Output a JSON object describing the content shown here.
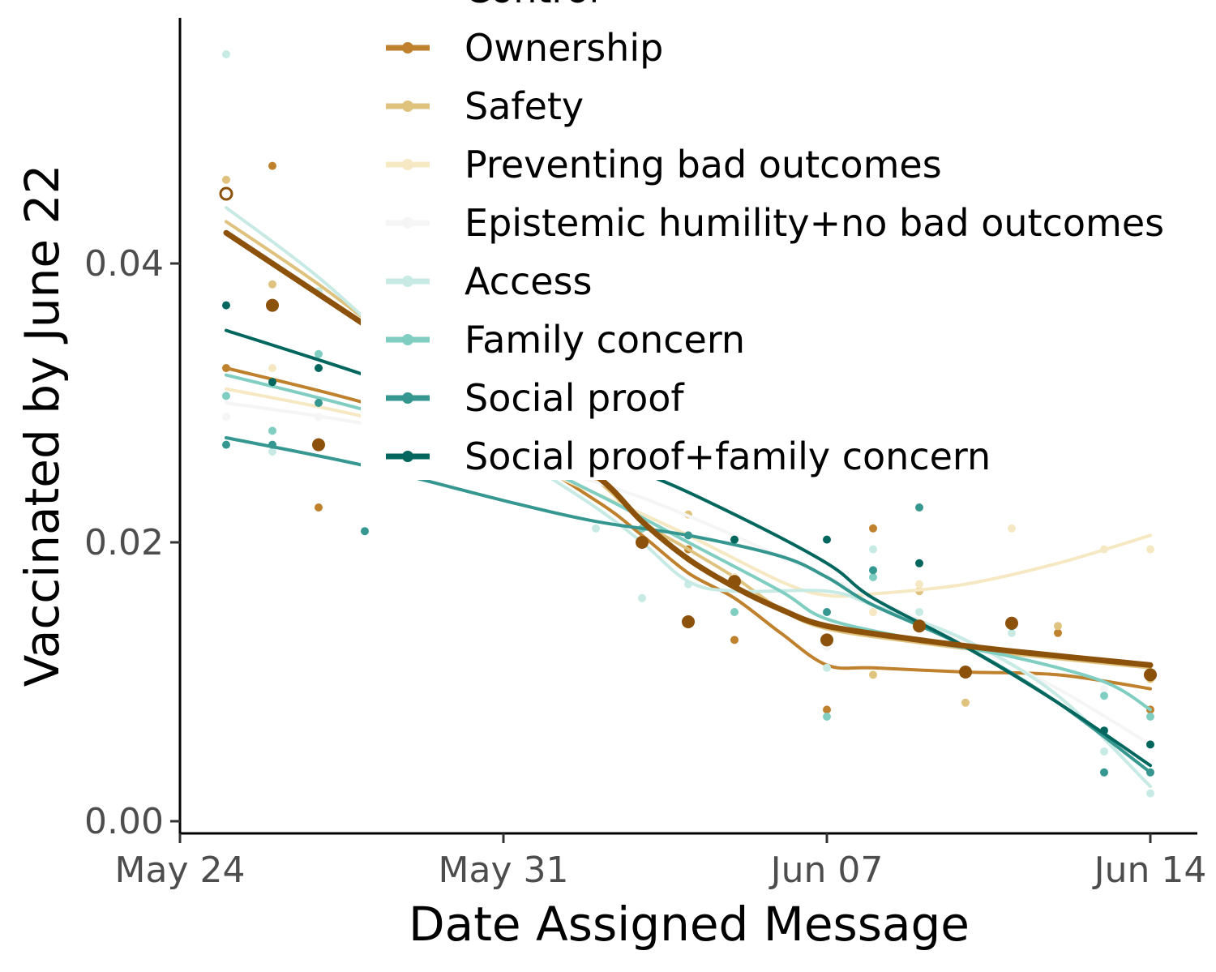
{
  "chart_data": {
    "type": "scatter",
    "title": "",
    "xlabel": "Date Assigned Message",
    "ylabel": "Vaccinated by June 22",
    "x_ticks": [
      {
        "day": 0,
        "label": "May 24"
      },
      {
        "day": 7,
        "label": "May 31"
      },
      {
        "day": 14,
        "label": "Jun 07"
      },
      {
        "day": 21,
        "label": "Jun 14"
      }
    ],
    "xlim": [
      "2021-05-24",
      "2021-06-15"
    ],
    "xlim_days": [
      0,
      22.0
    ],
    "ylim": [
      -0.001,
      0.056
    ],
    "y_ticks": [
      {
        "value": 0.0,
        "label": "0.00"
      },
      {
        "value": 0.02,
        "label": "0.02"
      },
      {
        "value": 0.04,
        "label": "0.04"
      }
    ],
    "grid": false,
    "legend_position": "top-center",
    "series": [
      {
        "name": "Control",
        "color": "#8c510a",
        "line_width": 7,
        "point_r": 8,
        "smooth": [
          [
            1,
            0.0422
          ],
          [
            3,
            0.0378
          ],
          [
            5,
            0.0334
          ],
          [
            7,
            0.029
          ],
          [
            9,
            0.0248
          ],
          [
            10,
            0.0215
          ],
          [
            11,
            0.0188
          ],
          [
            12,
            0.0168
          ],
          [
            13,
            0.0152
          ],
          [
            14,
            0.014
          ],
          [
            16,
            0.013
          ],
          [
            18,
            0.0122
          ],
          [
            21,
            0.0112
          ]
        ],
        "points": [
          [
            2,
            0.037
          ],
          [
            3,
            0.027
          ],
          [
            10,
            0.02
          ],
          [
            11,
            0.0143
          ],
          [
            12,
            0.0172
          ],
          [
            14,
            0.013
          ],
          [
            16,
            0.014
          ],
          [
            17,
            0.0107
          ],
          [
            18,
            0.0142
          ],
          [
            21,
            0.0105
          ]
        ]
      },
      {
        "name": "Ownership",
        "color": "#bf812d",
        "line_width": 4,
        "point_r": 5,
        "smooth": [
          [
            1,
            0.0325
          ],
          [
            4,
            0.03
          ],
          [
            7,
            0.0268
          ],
          [
            9,
            0.023
          ],
          [
            10,
            0.0205
          ],
          [
            11,
            0.0178
          ],
          [
            12,
            0.016
          ],
          [
            13,
            0.0135
          ],
          [
            14,
            0.0112
          ],
          [
            15,
            0.011
          ],
          [
            17,
            0.0107
          ],
          [
            19,
            0.0105
          ],
          [
            21,
            0.0095
          ]
        ],
        "points": [
          [
            1,
            0.0325
          ],
          [
            2,
            0.047
          ],
          [
            3,
            0.0225
          ],
          [
            10,
            0.021
          ],
          [
            11,
            0.0195
          ],
          [
            12,
            0.013
          ],
          [
            14,
            0.008
          ],
          [
            15,
            0.021
          ],
          [
            17,
            0.0108
          ],
          [
            19,
            0.0135
          ],
          [
            21,
            0.008
          ]
        ]
      },
      {
        "name": "Safety",
        "color": "#dfc27d",
        "line_width": 4,
        "point_r": 5,
        "smooth": [
          [
            1,
            0.043
          ],
          [
            3,
            0.0385
          ],
          [
            5,
            0.0335
          ],
          [
            7,
            0.029
          ],
          [
            9,
            0.0245
          ],
          [
            10,
            0.0215
          ],
          [
            11,
            0.0195
          ],
          [
            12,
            0.0175
          ],
          [
            13,
            0.0152
          ],
          [
            14,
            0.0138
          ],
          [
            16,
            0.0128
          ],
          [
            18,
            0.012
          ],
          [
            21,
            0.011
          ]
        ],
        "points": [
          [
            1,
            0.046
          ],
          [
            2,
            0.0385
          ],
          [
            10,
            0.021
          ],
          [
            11,
            0.022
          ],
          [
            12,
            0.017
          ],
          [
            15,
            0.0105
          ],
          [
            16,
            0.0165
          ],
          [
            17,
            0.0085
          ],
          [
            19,
            0.014
          ],
          [
            21,
            0.0102
          ]
        ]
      },
      {
        "name": "Preventing bad outcomes",
        "color": "#f6e8c3",
        "line_width": 4,
        "point_r": 5,
        "smooth": [
          [
            1,
            0.031
          ],
          [
            4,
            0.029
          ],
          [
            7,
            0.0262
          ],
          [
            9,
            0.0235
          ],
          [
            11,
            0.0205
          ],
          [
            13,
            0.0172
          ],
          [
            14,
            0.0162
          ],
          [
            15,
            0.0163
          ],
          [
            17,
            0.017
          ],
          [
            19,
            0.0185
          ],
          [
            21,
            0.0205
          ]
        ],
        "points": [
          [
            2,
            0.0325
          ],
          [
            12,
            0.0175
          ],
          [
            15,
            0.015
          ],
          [
            16,
            0.017
          ],
          [
            18,
            0.021
          ],
          [
            20,
            0.0195
          ],
          [
            21,
            0.0195
          ]
        ]
      },
      {
        "name": "Epistemic humility+no bad outcomes",
        "color": "#f5f5f5",
        "line_width": 4,
        "point_r": 5,
        "smooth": [
          [
            1,
            0.03
          ],
          [
            4,
            0.0285
          ],
          [
            7,
            0.0262
          ],
          [
            10,
            0.0232
          ],
          [
            13,
            0.019
          ],
          [
            15,
            0.016
          ],
          [
            17,
            0.0128
          ],
          [
            19,
            0.0095
          ],
          [
            21,
            0.0055
          ]
        ],
        "points": [
          [
            1,
            0.029
          ],
          [
            3,
            0.029
          ],
          [
            14,
            0.0125
          ],
          [
            16,
            0.015
          ],
          [
            20,
            0.0095
          ]
        ]
      },
      {
        "name": "Access",
        "color": "#c7eae5",
        "line_width": 4,
        "point_r": 5,
        "smooth": [
          [
            1,
            0.044
          ],
          [
            3,
            0.039
          ],
          [
            5,
            0.033
          ],
          [
            7,
            0.027
          ],
          [
            9,
            0.0225
          ],
          [
            10,
            0.02
          ],
          [
            11,
            0.0172
          ],
          [
            12,
            0.0165
          ],
          [
            14,
            0.0165
          ],
          [
            15,
            0.0155
          ],
          [
            17,
            0.013
          ],
          [
            19,
            0.009
          ],
          [
            21,
            0.0025
          ]
        ],
        "points": [
          [
            1,
            0.055
          ],
          [
            2,
            0.0265
          ],
          [
            3,
            0.038
          ],
          [
            9,
            0.021
          ],
          [
            10,
            0.016
          ],
          [
            11,
            0.017
          ],
          [
            14,
            0.011
          ],
          [
            15,
            0.0195
          ],
          [
            16,
            0.015
          ],
          [
            18,
            0.0135
          ],
          [
            20,
            0.005
          ],
          [
            21,
            0.002
          ]
        ]
      },
      {
        "name": "Family concern",
        "color": "#80cdc1",
        "line_width": 4,
        "point_r": 5,
        "smooth": [
          [
            1,
            0.032
          ],
          [
            4,
            0.0295
          ],
          [
            7,
            0.0265
          ],
          [
            9,
            0.0235
          ],
          [
            11,
            0.02
          ],
          [
            13,
            0.0165
          ],
          [
            14,
            0.0145
          ],
          [
            16,
            0.013
          ],
          [
            18,
            0.0118
          ],
          [
            20,
            0.01
          ],
          [
            21,
            0.008
          ]
        ],
        "points": [
          [
            1,
            0.0305
          ],
          [
            2,
            0.028
          ],
          [
            3,
            0.0335
          ],
          [
            10,
            0.021
          ],
          [
            12,
            0.015
          ],
          [
            14,
            0.0075
          ],
          [
            15,
            0.0175
          ],
          [
            18,
            0.014
          ],
          [
            20,
            0.009
          ],
          [
            21,
            0.0075
          ]
        ]
      },
      {
        "name": "Social proof",
        "color": "#35978f",
        "line_width": 4,
        "point_r": 5,
        "smooth": [
          [
            1,
            0.0275
          ],
          [
            4,
            0.0255
          ],
          [
            7,
            0.023
          ],
          [
            9,
            0.0215
          ],
          [
            11,
            0.0205
          ],
          [
            13,
            0.019
          ],
          [
            14,
            0.0175
          ],
          [
            15,
            0.0155
          ],
          [
            17,
            0.0125
          ],
          [
            19,
            0.0085
          ],
          [
            21,
            0.0035
          ]
        ],
        "points": [
          [
            1,
            0.027
          ],
          [
            2,
            0.027
          ],
          [
            3,
            0.03
          ],
          [
            4,
            0.0208
          ],
          [
            10,
            0.02
          ],
          [
            11,
            0.0205
          ],
          [
            14,
            0.015
          ],
          [
            15,
            0.018
          ],
          [
            16,
            0.0225
          ],
          [
            18,
            0.014
          ],
          [
            20,
            0.0035
          ],
          [
            21,
            0.0035
          ]
        ]
      },
      {
        "name": "Social proof+family concern",
        "color": "#01665e",
        "line_width": 4,
        "point_r": 5,
        "smooth": [
          [
            1,
            0.0352
          ],
          [
            4,
            0.032
          ],
          [
            7,
            0.0285
          ],
          [
            10,
            0.025
          ],
          [
            12,
            0.022
          ],
          [
            14,
            0.0185
          ],
          [
            15,
            0.016
          ],
          [
            17,
            0.0125
          ],
          [
            19,
            0.0085
          ],
          [
            21,
            0.004
          ]
        ],
        "points": [
          [
            1,
            0.037
          ],
          [
            2,
            0.0315
          ],
          [
            3,
            0.0325
          ],
          [
            12,
            0.0202
          ],
          [
            14,
            0.0202
          ],
          [
            16,
            0.0185
          ],
          [
            20,
            0.0065
          ],
          [
            21,
            0.0055
          ]
        ]
      }
    ],
    "annotations": [
      {
        "type": "hollow-point",
        "color": "#8c510a",
        "x": 1,
        "y": 0.045
      }
    ]
  }
}
